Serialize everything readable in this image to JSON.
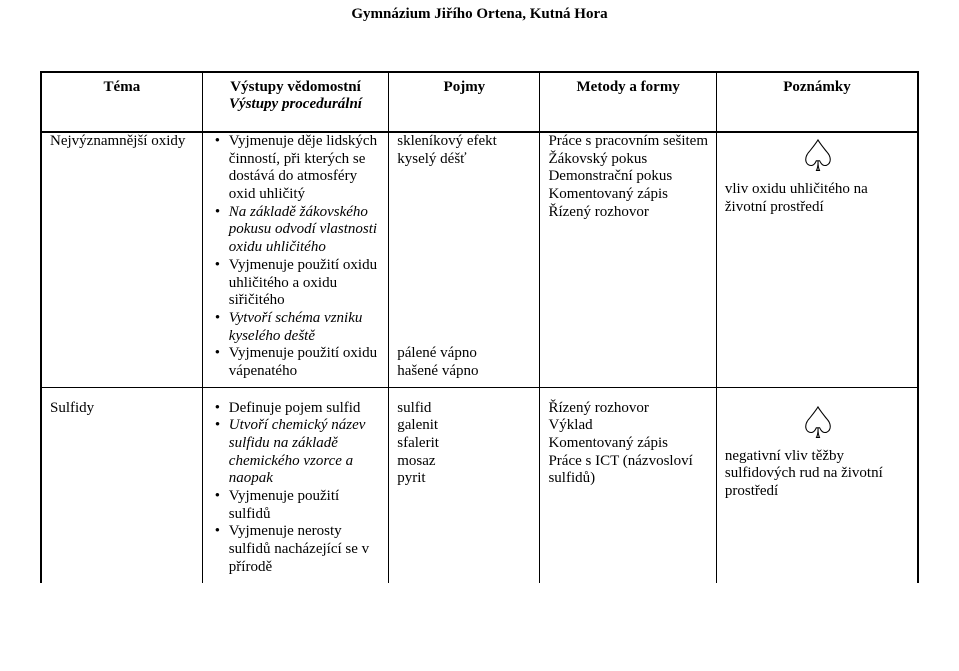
{
  "header": "Gymnázium Jiřího Ortena, Kutná Hora",
  "tableHeaders": {
    "tema": "Téma",
    "vystupy_ved": "Výstupy vědomostní",
    "vystupy_proc": "Výstupy procedurální",
    "pojmy": "Pojmy",
    "metody": "Metody a formy",
    "poznamky": "Poznámky"
  },
  "row1": {
    "tema": "Nejvýznamnější oxidy",
    "vystupy": [
      {
        "text": "Vyjmenuje děje lidských činností, při kterých se dostává do atmosféry oxid uhličitý",
        "italic": false
      },
      {
        "text": "Na základě žákovského pokusu odvodí vlastnosti oxidu uhličitého",
        "italic": true
      },
      {
        "text": "Vyjmenuje použití oxidu uhličitého a oxidu siřičitého",
        "italic": false
      },
      {
        "text": "Vytvoří schéma vzniku kyselého deště",
        "italic": true
      },
      {
        "text": "Vyjmenuje použití oxidu vápenatého",
        "italic": false
      }
    ],
    "pojmy_top": [
      "skleníkový efekt",
      "kyselý déšť"
    ],
    "pojmy_bottom": [
      "pálené vápno",
      "hašené vápno"
    ],
    "metody": [
      "Práce s pracovním sešitem",
      "Žákovský pokus",
      "Demonstrační pokus",
      "Komentovaný zápis",
      "Řízený rozhovor"
    ],
    "poznamky_icon": "♤",
    "poznamky_text": "vliv oxidu uhličitého na životní prostředí"
  },
  "row2": {
    "tema": "Sulfidy",
    "vystupy": [
      {
        "text": "Definuje pojem sulfid",
        "italic": false
      },
      {
        "text": "Utvoří chemický název sulfidu na základě chemického vzorce a naopak",
        "italic": true
      },
      {
        "text": "Vyjmenuje použití sulfidů",
        "italic": false
      },
      {
        "text": "Vyjmenuje nerosty sulfidů nacházející se v přírodě",
        "italic": false
      }
    ],
    "pojmy": [
      "sulfid",
      "galenit",
      "sfalerit",
      "mosaz",
      "pyrit"
    ],
    "metody": [
      "Řízený rozhovor",
      "Výklad",
      "Komentovaný zápis",
      "Práce s ICT (názvosloví sulfidů)"
    ],
    "poznamky_icon": "♤",
    "poznamky_text": "negativní vliv těžby sulfidových rud na životní prostředí"
  }
}
